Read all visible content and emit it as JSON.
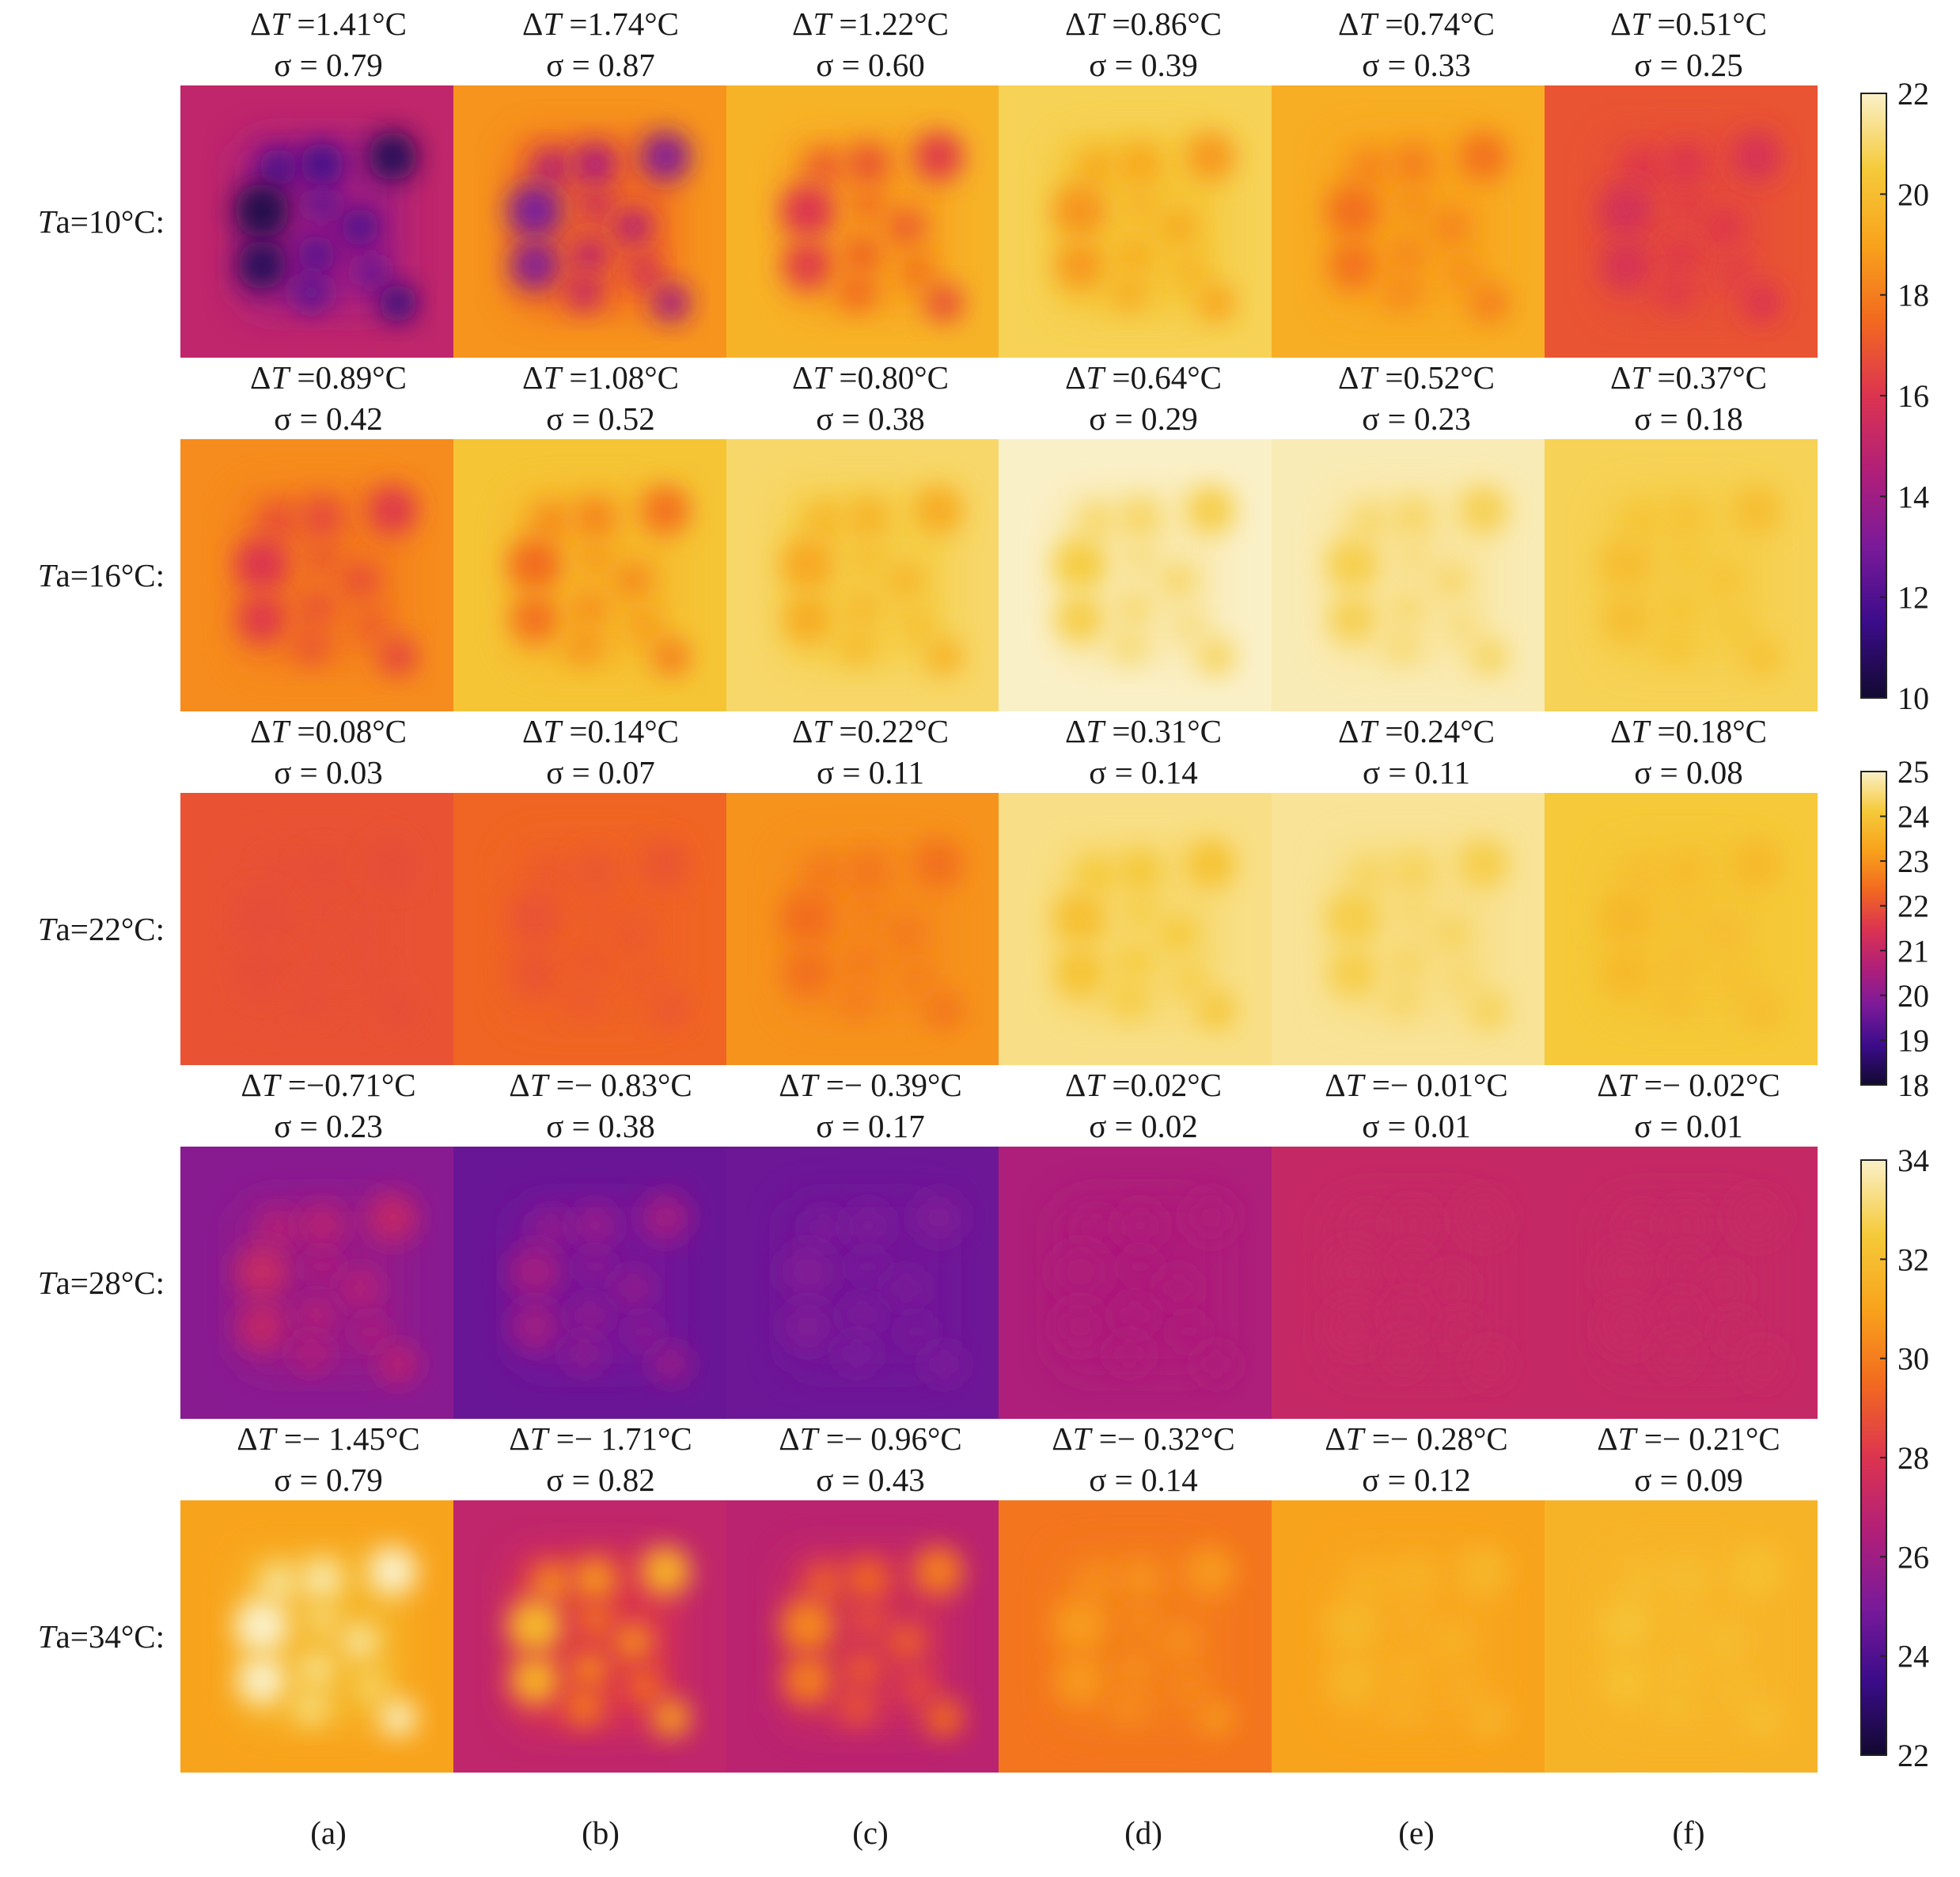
{
  "figure": {
    "panel_labels": [
      "(a)",
      "(b)",
      "(c)",
      "(d)",
      "(e)",
      "(f)"
    ],
    "rows": [
      {
        "label_italic": "T",
        "label_rest": "a=10°C:",
        "colorbar": "cb1",
        "panels": [
          {
            "dT": "1.41°C",
            "sigma": "0.79",
            "base": 15.0,
            "hot": -4.6
          },
          {
            "dT": "1.74°C",
            "sigma": "0.87",
            "base": 18.6,
            "hot": -5.6
          },
          {
            "dT": "1.22°C",
            "sigma": "0.60",
            "base": 19.6,
            "hot": -3.6
          },
          {
            "dT": "0.86°C",
            "sigma": "0.39",
            "base": 20.8,
            "hot": -2.2
          },
          {
            "dT": "0.74°C",
            "sigma": "0.33",
            "base": 19.4,
            "hot": -1.8
          },
          {
            "dT": "0.51°C",
            "sigma": "0.25",
            "base": 16.9,
            "hot": -1.2
          }
        ]
      },
      {
        "label_italic": "T",
        "label_rest": "a=16°C:",
        "colorbar": "cb1",
        "panels": [
          {
            "dT": "0.89°C",
            "sigma": "0.42",
            "base": 18.4,
            "hot": -2.4
          },
          {
            "dT": "1.08°C",
            "sigma": "0.52",
            "base": 20.3,
            "hot": -2.8
          },
          {
            "dT": "0.80°C",
            "sigma": "0.38",
            "base": 21.0,
            "hot": -1.8
          },
          {
            "dT": "0.64°C",
            "sigma": "0.29",
            "base": 22.0,
            "hot": -1.4
          },
          {
            "dT": "0.52°C",
            "sigma": "0.23",
            "base": 21.8,
            "hot": -1.1
          },
          {
            "dT": "0.37°C",
            "sigma": "0.18",
            "base": 20.8,
            "hot": -0.8
          }
        ]
      },
      {
        "label_italic": "T",
        "label_rest": "a=22°C:",
        "colorbar": "cb2",
        "panels": [
          {
            "dT": "0.08°C",
            "sigma": "0.03",
            "base": 22.0,
            "hot": -0.1
          },
          {
            "dT": "0.14°C",
            "sigma": "0.07",
            "base": 22.3,
            "hot": -0.3
          },
          {
            "dT": "0.22°C",
            "sigma": "0.11",
            "base": 23.0,
            "hot": -0.6
          },
          {
            "dT": "0.31°C",
            "sigma": "0.14",
            "base": 24.6,
            "hot": -0.7
          },
          {
            "dT": "0.24°C",
            "sigma": "0.11",
            "base": 24.7,
            "hot": -0.5
          },
          {
            "dT": "0.18°C",
            "sigma": "0.08",
            "base": 24.1,
            "hot": -0.4
          }
        ]
      },
      {
        "label_italic": "T",
        "label_rest": "a=28°C:",
        "colorbar": "cb3",
        "panels": [
          {
            "dT": "−0.71°C",
            "sigma": "0.23",
            "base": 25.4,
            "hot": 1.8
          },
          {
            "dT": "− 0.83°C",
            "sigma": "0.38",
            "base": 24.6,
            "hot": 1.5
          },
          {
            "dT": "− 0.39°C",
            "sigma": "0.17",
            "base": 24.7,
            "hot": 0.5
          },
          {
            "dT": "0.02°C",
            "sigma": "0.02",
            "base": 26.4,
            "hot": 0.05
          },
          {
            "dT": "− 0.01°C",
            "sigma": "0.01",
            "base": 27.2,
            "hot": 0.02
          },
          {
            "dT": "− 0.02°C",
            "sigma": "0.01",
            "base": 27.2,
            "hot": 0.02
          }
        ]
      },
      {
        "label_italic": "T",
        "label_rest": "a=34°C:",
        "colorbar": "cb3",
        "panels": [
          {
            "dT": "− 1.45°C",
            "sigma": "0.79",
            "base": 31.0,
            "hot": 3.5
          },
          {
            "dT": "− 1.71°C",
            "sigma": "0.82",
            "base": 27.0,
            "hot": 4.8
          },
          {
            "dT": "− 0.96°C",
            "sigma": "0.43",
            "base": 26.8,
            "hot": 3.4
          },
          {
            "dT": "− 0.32°C",
            "sigma": "0.14",
            "base": 29.8,
            "hot": 1.0
          },
          {
            "dT": "− 0.28°C",
            "sigma": "0.12",
            "base": 31.0,
            "hot": 0.8
          },
          {
            "dT": "− 0.21°C",
            "sigma": "0.09",
            "base": 31.6,
            "hot": 0.6
          }
        ]
      }
    ],
    "annotation_prefix_dT": "Δ",
    "annotation_prefix_dT_italic": "T",
    "annotation_prefix_sigma": "σ = "
  },
  "chart_data": [
    {
      "type": "heatmap",
      "name": "colorbar-1",
      "title": "",
      "colormap": "inferno-like",
      "range": [
        10,
        22
      ],
      "ticks": [
        "10",
        "12",
        "14",
        "16",
        "18",
        "20",
        "22"
      ],
      "applies_to_rows": [
        "Ta=10°C",
        "Ta=16°C"
      ]
    },
    {
      "type": "heatmap",
      "name": "colorbar-2",
      "title": "",
      "colormap": "inferno-like",
      "range": [
        18,
        25
      ],
      "ticks": [
        "18",
        "19",
        "20",
        "21",
        "22",
        "23",
        "24",
        "25"
      ],
      "applies_to_rows": [
        "Ta=22°C"
      ]
    },
    {
      "type": "heatmap",
      "name": "colorbar-3",
      "title": "",
      "colormap": "inferno-like",
      "range": [
        22,
        34
      ],
      "ticks": [
        "22",
        "24",
        "26",
        "28",
        "30",
        "32",
        "34"
      ],
      "applies_to_rows": [
        "Ta=28°C",
        "Ta=34°C"
      ]
    }
  ],
  "colors": {
    "cmap_stops": [
      "#120930",
      "#3b0c8a",
      "#7a1a9a",
      "#b11f78",
      "#dc3450",
      "#f26a1f",
      "#f8a31c",
      "#f5ca3a",
      "#faf0c8"
    ]
  }
}
